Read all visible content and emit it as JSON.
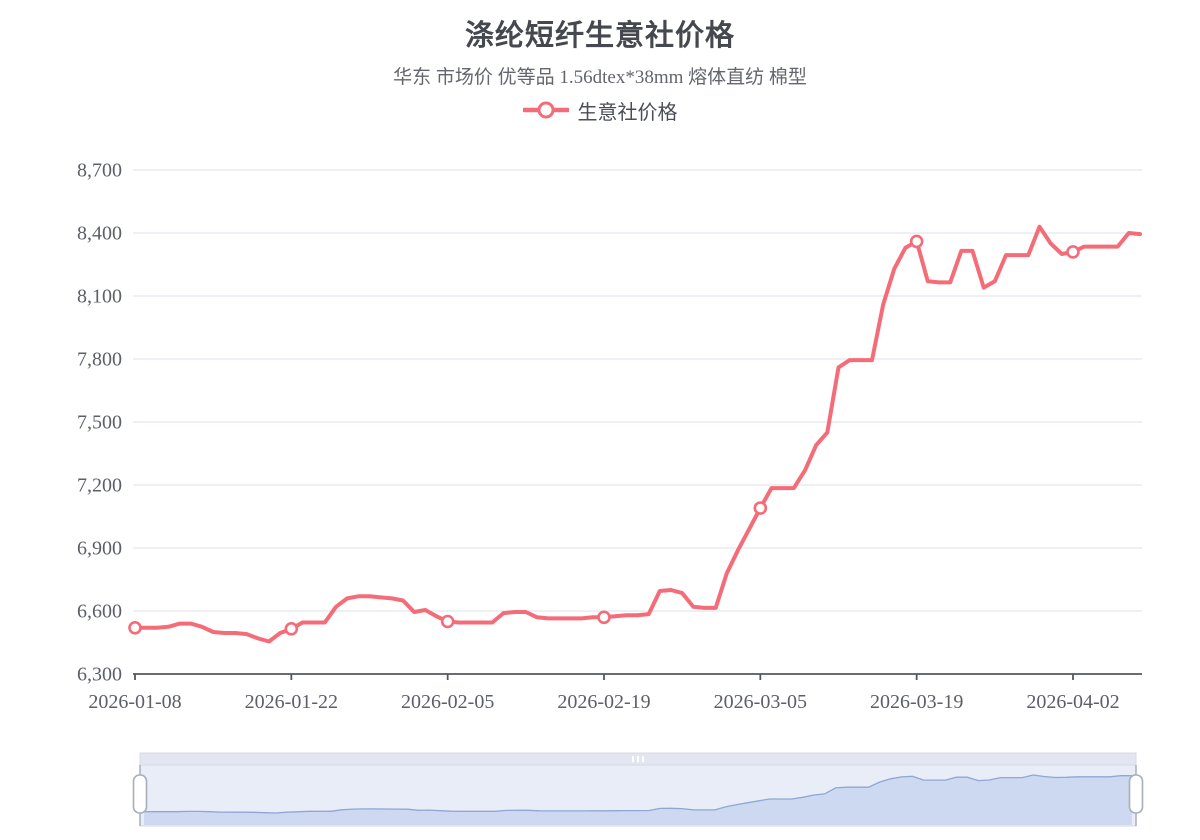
{
  "title": "涤纶短纤生意社价格",
  "subtitle": "华东 市场价 优等品 1.56dtex*38mm 熔体直纺 棉型",
  "legend": {
    "label": "生意社价格"
  },
  "colors": {
    "line": "#f46c78",
    "marker_fill": "#ffffff",
    "grid": "#e4e8f1",
    "axis": "#54575f",
    "tick_label": "#5c5f67",
    "title": "#45484e",
    "subtitle": "#63666d",
    "dz_bar": "#e2e6f0",
    "dz_bg": "#e9edf8",
    "dz_area_fill": "#ccd9f0",
    "dz_area_stroke": "#8fa7d4",
    "dz_border": "#d5d9e3",
    "dz_handle_fill": "#ffffff",
    "dz_handle_border": "#a8aebb",
    "dz_grip": "#ffffff"
  },
  "chart_data": {
    "type": "line",
    "series_name": "生意社价格",
    "start_date": "2026-01-08",
    "x_tick_labels": [
      "2026-01-08",
      "2026-01-22",
      "2026-02-05",
      "2026-02-19",
      "2026-03-05",
      "2026-03-19",
      "2026-04-02"
    ],
    "marker_indices": [
      0,
      14,
      28,
      42,
      56,
      70,
      84
    ],
    "y_ticks": [
      6300,
      6600,
      6900,
      7200,
      7500,
      7800,
      8100,
      8400,
      8700
    ],
    "ylim": [
      6300,
      8700
    ],
    "legend_position": "top-center",
    "grid": true,
    "values": [
      6520,
      6520,
      6520,
      6525,
      6540,
      6540,
      6525,
      6500,
      6495,
      6495,
      6490,
      6470,
      6455,
      6495,
      6515,
      6545,
      6545,
      6545,
      6620,
      6660,
      6670,
      6670,
      6665,
      6660,
      6650,
      6595,
      6605,
      6575,
      6550,
      6545,
      6545,
      6545,
      6545,
      6590,
      6595,
      6595,
      6570,
      6565,
      6565,
      6565,
      6565,
      6570,
      6570,
      6575,
      6580,
      6580,
      6585,
      6695,
      6700,
      6685,
      6620,
      6615,
      6615,
      6780,
      6890,
      6990,
      7090,
      7185,
      7185,
      7185,
      7270,
      7390,
      7450,
      7760,
      7795,
      7795,
      7795,
      8060,
      8230,
      8330,
      8360,
      8170,
      8165,
      8165,
      8315,
      8315,
      8140,
      8170,
      8295,
      8295,
      8295,
      8430,
      8350,
      8300,
      8310,
      8335,
      8335,
      8335,
      8335,
      8400,
      8395
    ]
  }
}
